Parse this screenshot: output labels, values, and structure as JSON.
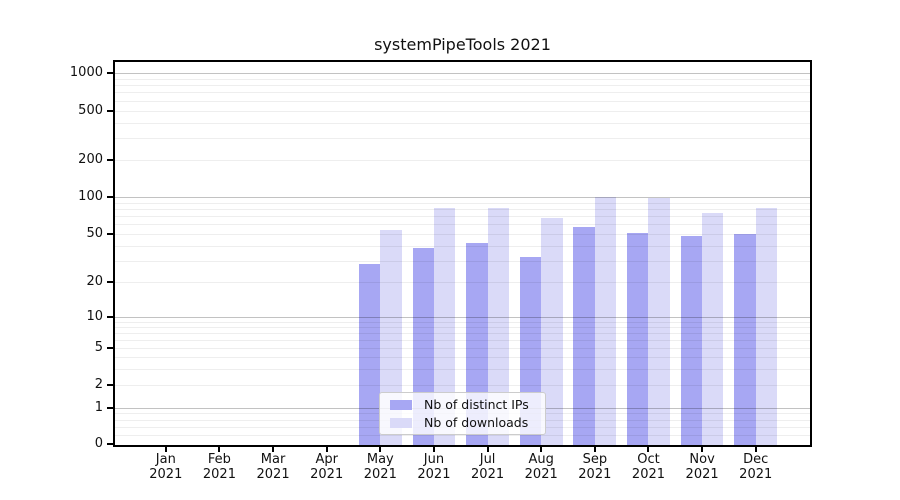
{
  "chart_data": {
    "type": "bar",
    "title": "systemPipeTools 2021",
    "categories": [
      "Jan 2021",
      "Feb 2021",
      "Mar 2021",
      "Apr 2021",
      "May 2021",
      "Jun 2021",
      "Jul 2021",
      "Aug 2021",
      "Sep 2021",
      "Oct 2021",
      "Nov 2021",
      "Dec 2021"
    ],
    "series": [
      {
        "name": "Nb of distinct IPs",
        "color": "#a7a7f3",
        "values": [
          0,
          0,
          0,
          0,
          28,
          38,
          42,
          32,
          57,
          51,
          48,
          50
        ]
      },
      {
        "name": "Nb of downloads",
        "color": "#dadaf8",
        "values": [
          0,
          0,
          0,
          0,
          54,
          82,
          81,
          68,
          100,
          98,
          74,
          82
        ]
      }
    ],
    "xlabel": "",
    "ylabel": "",
    "yscale": "symlog",
    "yticks": [
      0,
      1,
      2,
      5,
      10,
      20,
      50,
      100,
      200,
      500,
      1000
    ],
    "ylim": [
      0,
      1200
    ],
    "grid": true,
    "grid_on_top": true,
    "legend_position": "lower center",
    "background_color": "#ffffff"
  }
}
